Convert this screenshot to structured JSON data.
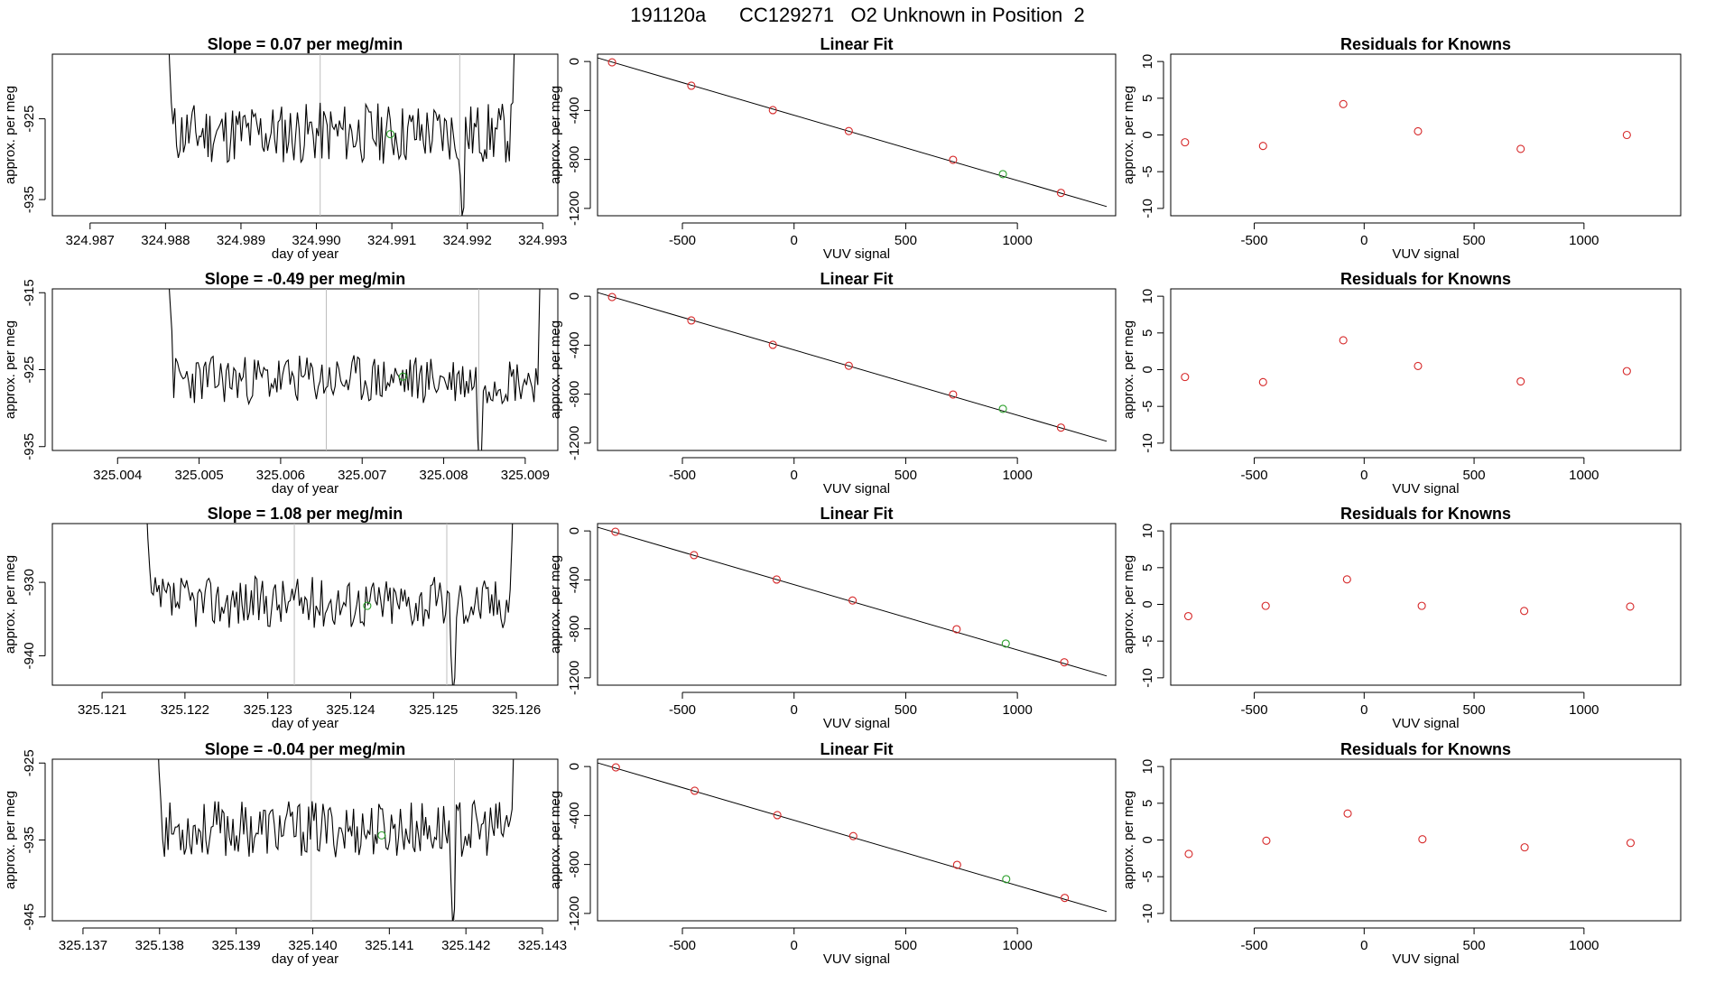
{
  "title": "191120a      CC129271   O2 Unknown in Position  2",
  "labels": {
    "time_ylabel": "approx. per meg",
    "time_xlabel": "day of year",
    "fit_title": "Linear Fit",
    "fit_ylabel": "approx. per meg",
    "fit_xlabel": "VUV signal",
    "resid_title": "Residuals for Knowns",
    "resid_ylabel": "approx. per meg",
    "resid_xlabel": "VUV signal"
  },
  "colors": {
    "line": "#000000",
    "known_point": "#d62728",
    "unknown_point": "#2ca02c",
    "axis": "#000000",
    "gridline": "#bebebe"
  },
  "chart_data": [
    {
      "row": 1,
      "type": "line",
      "title": "Slope =  0.07  per meg/min",
      "xlim": [
        324.9865,
        324.9932
      ],
      "ylim": [
        -937,
        -917
      ],
      "xticks": [
        324.987,
        324.988,
        324.989,
        324.99,
        324.991,
        324.992,
        324.993
      ],
      "xtick_labels": [
        "324.987",
        "324.988",
        "324.989",
        "324.990",
        "324.991",
        "324.992",
        "324.993"
      ],
      "yticks": [
        -925,
        -935
      ],
      "ytick_labels": [
        "-925",
        "-935"
      ],
      "xrange": [
        324.98803,
        324.99265
      ],
      "base": -926.8,
      "noise": 2.4,
      "seed": 11,
      "start_spike": [
        -912,
        -918,
        -923
      ],
      "end_spike": [
        -923,
        -915,
        -905
      ],
      "vlines": [
        324.99005,
        324.9919
      ],
      "dip": {
        "x": 324.9919,
        "values": [
          -932,
          -937,
          -936
        ]
      },
      "unknown_point": {
        "x": 324.99098,
        "y": -926.9
      }
    },
    {
      "row": 2,
      "type": "line",
      "title": "Slope =  -0.49  per meg/min",
      "xlim": [
        325.0032,
        325.0094
      ],
      "ylim": [
        -935.5,
        -914.5
      ],
      "xticks": [
        325.004,
        325.005,
        325.006,
        325.007,
        325.008,
        325.009
      ],
      "xtick_labels": [
        "325.004",
        "325.005",
        "325.006",
        "325.007",
        "325.008",
        "325.009"
      ],
      "yticks": [
        -915,
        -925,
        -935
      ],
      "ytick_labels": [
        "-915",
        "-925",
        "-935"
      ],
      "xrange": [
        325.00462,
        325.0092
      ],
      "base": -926.3,
      "noise": 2.0,
      "seed": 23,
      "start_spike": [
        -912,
        -916,
        -920
      ],
      "end_spike": [
        -927,
        -915,
        -905
      ],
      "vlines": [
        325.00656,
        325.00843
      ],
      "dip": {
        "x": 325.0084,
        "values": [
          -934,
          -938,
          -936
        ]
      },
      "unknown_point": {
        "x": 325.0075,
        "y": -925.9
      }
    },
    {
      "row": 3,
      "type": "line",
      "title": "Slope =  1.08  per meg/min",
      "xlim": [
        325.1204,
        325.1265
      ],
      "ylim": [
        -944,
        -922
      ],
      "xticks": [
        325.121,
        325.122,
        325.123,
        325.124,
        325.125,
        325.126
      ],
      "xtick_labels": [
        "325.121",
        "325.122",
        "325.123",
        "325.124",
        "325.125",
        "325.126"
      ],
      "yticks": [
        -930,
        -940
      ],
      "ytick_labels": [
        "-930",
        "-940"
      ],
      "xrange": [
        325.12153,
        325.12597
      ],
      "base": -932.7,
      "noise": 2.2,
      "seed": 37,
      "start_spike": [
        -918,
        -924,
        -928
      ],
      "end_spike": [
        -931,
        -924,
        -914
      ],
      "vlines": [
        325.12332,
        325.12516
      ],
      "dip": {
        "x": 325.1252,
        "values": [
          -940,
          -945,
          -943
        ]
      },
      "unknown_point": {
        "x": 325.1242,
        "y": -933.2
      }
    },
    {
      "row": 4,
      "type": "line",
      "title": "Slope =  -0.04  per meg/min",
      "xlim": [
        325.1366,
        325.1432
      ],
      "ylim": [
        -945.5,
        -924.5
      ],
      "xticks": [
        325.137,
        325.138,
        325.139,
        325.14,
        325.141,
        325.142,
        325.143
      ],
      "xtick_labels": [
        "325.137",
        "325.138",
        "325.139",
        "325.140",
        "325.141",
        "325.142",
        "325.143"
      ],
      "yticks": [
        -925,
        -935,
        -945
      ],
      "ytick_labels": [
        "-925",
        "-935",
        "-945"
      ],
      "xrange": [
        325.13797,
        325.14265
      ],
      "base": -933.6,
      "noise": 2.3,
      "seed": 53,
      "start_spike": [
        -920,
        -926,
        -930
      ],
      "end_spike": [
        -931,
        -922,
        -912
      ],
      "vlines": [
        325.13998,
        325.14185
      ],
      "dip": {
        "x": 325.1418,
        "values": [
          -940,
          -946,
          -944
        ]
      },
      "unknown_point": {
        "x": 325.1409,
        "y": -934.4
      }
    },
    {
      "row": 1,
      "type": "scatter",
      "title": "Linear Fit",
      "xlim": [
        -880,
        1440
      ],
      "ylim": [
        -1260,
        60
      ],
      "xticks": [
        -500,
        0,
        500,
        1000
      ],
      "xtick_labels": [
        "-500",
        "0",
        "500",
        "1000"
      ],
      "yticks": [
        0,
        -400,
        -800,
        -1200
      ],
      "ytick_labels": [
        "0",
        "-400",
        "-800",
        "-1200"
      ],
      "knowns": [
        [
          -815,
          -7
        ],
        [
          -460,
          -198
        ],
        [
          -95,
          -397
        ],
        [
          245,
          -568
        ],
        [
          712,
          -803
        ],
        [
          1195,
          -1073
        ]
      ],
      "unknown": [
        [
          935,
          -920
        ]
      ],
      "fit_line": [
        [
          -880,
          30
        ],
        [
          1400,
          -1185
        ]
      ]
    },
    {
      "row": 2,
      "type": "scatter",
      "title": "Linear Fit",
      "xlim": [
        -880,
        1440
      ],
      "ylim": [
        -1260,
        60
      ],
      "xticks": [
        -500,
        0,
        500,
        1000
      ],
      "xtick_labels": [
        "-500",
        "0",
        "500",
        "1000"
      ],
      "yticks": [
        0,
        -400,
        -800,
        -1200
      ],
      "ytick_labels": [
        "0",
        "-400",
        "-800",
        "-1200"
      ],
      "knowns": [
        [
          -815,
          -7
        ],
        [
          -460,
          -198
        ],
        [
          -95,
          -397
        ],
        [
          245,
          -568
        ],
        [
          712,
          -803
        ],
        [
          1195,
          -1073
        ]
      ],
      "unknown": [
        [
          935,
          -920
        ]
      ],
      "fit_line": [
        [
          -880,
          30
        ],
        [
          1400,
          -1185
        ]
      ]
    },
    {
      "row": 3,
      "type": "scatter",
      "title": "Linear Fit",
      "xlim": [
        -880,
        1440
      ],
      "ylim": [
        -1260,
        60
      ],
      "xticks": [
        -500,
        0,
        500,
        1000
      ],
      "xtick_labels": [
        "-500",
        "0",
        "500",
        "1000"
      ],
      "yticks": [
        0,
        -400,
        -800,
        -1200
      ],
      "ytick_labels": [
        "0",
        "-400",
        "-800",
        "-1200"
      ],
      "knowns": [
        [
          -800,
          -7
        ],
        [
          -448,
          -198
        ],
        [
          -78,
          -397
        ],
        [
          262,
          -568
        ],
        [
          728,
          -803
        ],
        [
          1210,
          -1073
        ]
      ],
      "unknown": [
        [
          948,
          -920
        ]
      ],
      "fit_line": [
        [
          -880,
          30
        ],
        [
          1400,
          -1185
        ]
      ]
    },
    {
      "row": 4,
      "type": "scatter",
      "title": "Linear Fit",
      "xlim": [
        -880,
        1440
      ],
      "ylim": [
        -1260,
        60
      ],
      "xticks": [
        -500,
        0,
        500,
        1000
      ],
      "xtick_labels": [
        "-500",
        "0",
        "500",
        "1000"
      ],
      "yticks": [
        0,
        -400,
        -800,
        -1200
      ],
      "ytick_labels": [
        "0",
        "-400",
        "-800",
        "-1200"
      ],
      "knowns": [
        [
          -798,
          -7
        ],
        [
          -445,
          -198
        ],
        [
          -75,
          -397
        ],
        [
          265,
          -568
        ],
        [
          730,
          -803
        ],
        [
          1212,
          -1073
        ]
      ],
      "unknown": [
        [
          950,
          -920
        ]
      ],
      "fit_line": [
        [
          -880,
          30
        ],
        [
          1400,
          -1185
        ]
      ]
    },
    {
      "row": 1,
      "type": "scatter",
      "title": "Residuals for Knowns",
      "xlim": [
        -880,
        1440
      ],
      "ylim": [
        -11,
        11
      ],
      "xticks": [
        -500,
        0,
        500,
        1000
      ],
      "xtick_labels": [
        "-500",
        "0",
        "500",
        "1000"
      ],
      "yticks": [
        10,
        5,
        0,
        -5,
        -10
      ],
      "ytick_labels": [
        "10",
        "5",
        "0",
        "-5",
        "-10"
      ],
      "points": [
        [
          -815,
          -1.0
        ],
        [
          -460,
          -1.5
        ],
        [
          -95,
          4.2
        ],
        [
          245,
          0.5
        ],
        [
          712,
          -1.9
        ],
        [
          1195,
          0.0
        ]
      ]
    },
    {
      "row": 2,
      "type": "scatter",
      "title": "Residuals for Knowns",
      "xlim": [
        -880,
        1440
      ],
      "ylim": [
        -11,
        11
      ],
      "xticks": [
        -500,
        0,
        500,
        1000
      ],
      "xtick_labels": [
        "-500",
        "0",
        "500",
        "1000"
      ],
      "yticks": [
        10,
        5,
        0,
        -5,
        -10
      ],
      "ytick_labels": [
        "10",
        "5",
        "0",
        "-5",
        "-10"
      ],
      "points": [
        [
          -815,
          -1.0
        ],
        [
          -460,
          -1.7
        ],
        [
          -95,
          4.0
        ],
        [
          245,
          0.5
        ],
        [
          712,
          -1.6
        ],
        [
          1195,
          -0.2
        ]
      ]
    },
    {
      "row": 3,
      "type": "scatter",
      "title": "Residuals for Knowns",
      "xlim": [
        -880,
        1440
      ],
      "ylim": [
        -11,
        11
      ],
      "xticks": [
        -500,
        0,
        500,
        1000
      ],
      "xtick_labels": [
        "-500",
        "0",
        "500",
        "1000"
      ],
      "yticks": [
        10,
        5,
        0,
        -5,
        -10
      ],
      "ytick_labels": [
        "10",
        "5",
        "0",
        "-5",
        "-10"
      ],
      "points": [
        [
          -800,
          -1.6
        ],
        [
          -448,
          -0.2
        ],
        [
          -78,
          3.4
        ],
        [
          262,
          -0.2
        ],
        [
          728,
          -0.9
        ],
        [
          1210,
          -0.3
        ]
      ]
    },
    {
      "row": 4,
      "type": "scatter",
      "title": "Residuals for Knowns",
      "xlim": [
        -880,
        1440
      ],
      "ylim": [
        -11,
        11
      ],
      "xticks": [
        -500,
        0,
        500,
        1000
      ],
      "xtick_labels": [
        "-500",
        "0",
        "500",
        "1000"
      ],
      "yticks": [
        10,
        5,
        0,
        -5,
        -10
      ],
      "ytick_labels": [
        "10",
        "5",
        "0",
        "-5",
        "-10"
      ],
      "points": [
        [
          -798,
          -1.9
        ],
        [
          -445,
          -0.1
        ],
        [
          -75,
          3.6
        ],
        [
          265,
          0.1
        ],
        [
          730,
          -1.0
        ],
        [
          1212,
          -0.4
        ]
      ]
    }
  ]
}
